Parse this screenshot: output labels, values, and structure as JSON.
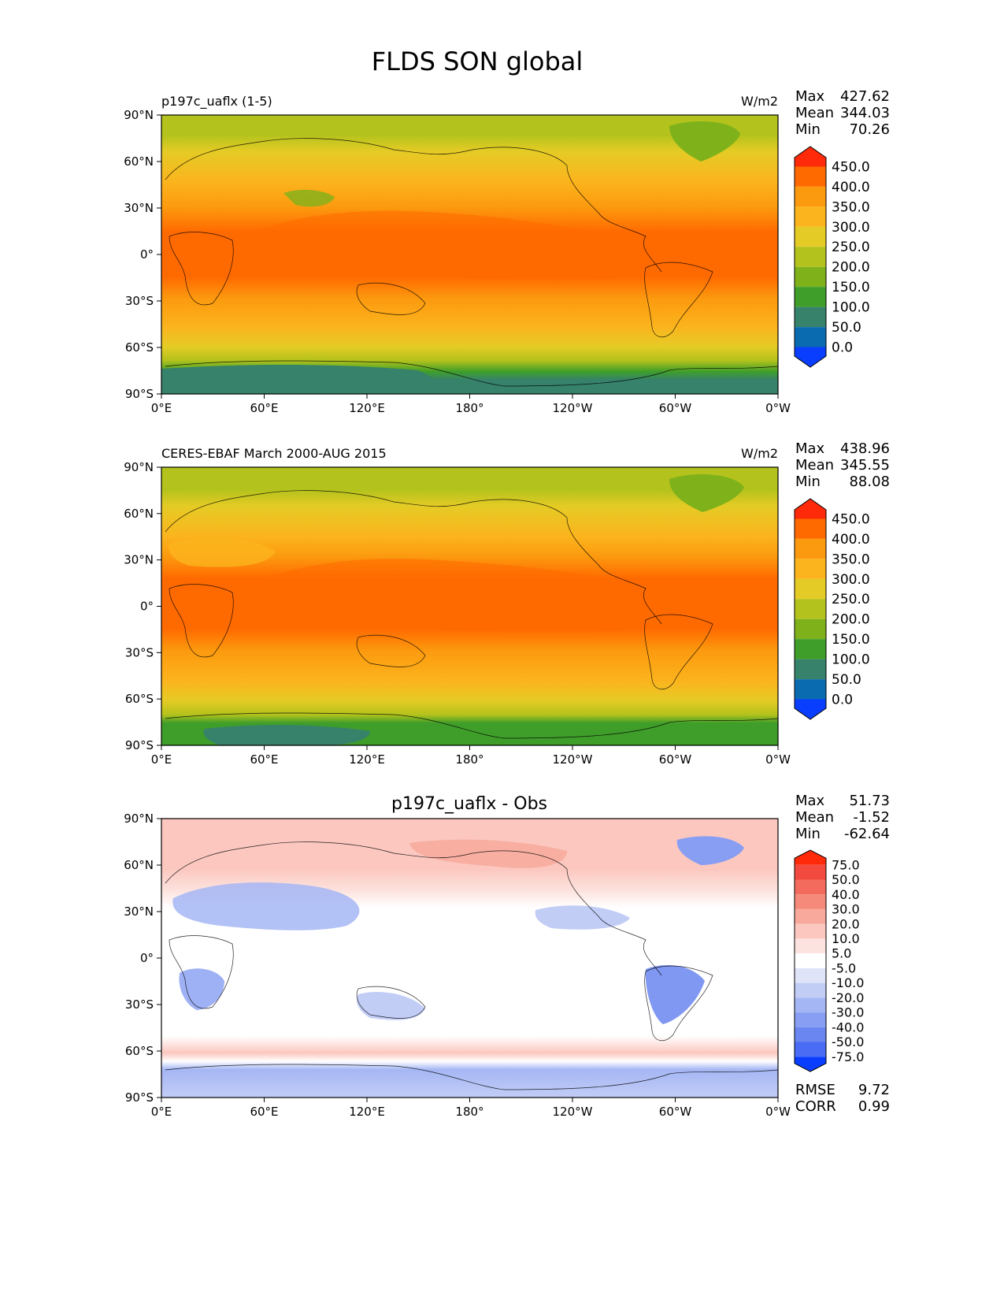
{
  "figure": {
    "title": "FLDS SON global"
  },
  "lon_ticks": [
    "0°E",
    "60°E",
    "120°E",
    "180°",
    "120°W",
    "60°W",
    "0°W"
  ],
  "lat_ticks": [
    "90°N",
    "60°N",
    "30°N",
    "0°",
    "30°S",
    "60°S",
    "90°S"
  ],
  "panels": [
    {
      "id": "model",
      "left_title": "p197c_uaflx (1-5)",
      "center_title": "",
      "units": "W/m2",
      "stats": [
        {
          "label": "Max",
          "value": "427.62"
        },
        {
          "label": "Mean",
          "value": "344.03"
        },
        {
          "label": "Min",
          "value": "70.26"
        }
      ],
      "colorbar": {
        "labels": [
          "450.0",
          "400.0",
          "350.0",
          "300.0",
          "250.0",
          "200.0",
          "150.0",
          "100.0",
          "50.0",
          "0.0"
        ],
        "colors": [
          "#ff2a0a",
          "#ff6a00",
          "#fc9a0f",
          "#fbb41d",
          "#e5cb25",
          "#b3c21c",
          "#7fb21a",
          "#3f9e2a",
          "#36826a",
          "#0b6bb0",
          "#0a3eff"
        ]
      },
      "footer": []
    },
    {
      "id": "obs",
      "left_title": "CERES-EBAF March 2000-AUG 2015",
      "center_title": "",
      "units": "W/m2",
      "stats": [
        {
          "label": "Max",
          "value": "438.96"
        },
        {
          "label": "Mean",
          "value": "345.55"
        },
        {
          "label": "Min",
          "value": "88.08"
        }
      ],
      "colorbar": {
        "labels": [
          "450.0",
          "400.0",
          "350.0",
          "300.0",
          "250.0",
          "200.0",
          "150.0",
          "100.0",
          "50.0",
          "0.0"
        ],
        "colors": [
          "#ff2a0a",
          "#ff6a00",
          "#fc9a0f",
          "#fbb41d",
          "#e5cb25",
          "#b3c21c",
          "#7fb21a",
          "#3f9e2a",
          "#36826a",
          "#0b6bb0",
          "#0a3eff"
        ]
      },
      "footer": []
    },
    {
      "id": "diff",
      "left_title": "",
      "center_title": "p197c_uaflx - Obs",
      "units": "",
      "stats": [
        {
          "label": "Max",
          "value": "51.73"
        },
        {
          "label": "Mean",
          "value": "-1.52"
        },
        {
          "label": "Min",
          "value": "-62.64"
        }
      ],
      "colorbar": {
        "labels": [
          "75.0",
          "50.0",
          "40.0",
          "30.0",
          "20.0",
          "10.0",
          "5.0",
          "-5.0",
          "-10.0",
          "-20.0",
          "-30.0",
          "-40.0",
          "-50.0",
          "-75.0"
        ],
        "colors": [
          "#ff2a0a",
          "#f24a3e",
          "#f26b5c",
          "#f58a7a",
          "#f8a99b",
          "#fbc7bf",
          "#fde3df",
          "#ffffff",
          "#dfe4f8",
          "#c2cdf6",
          "#a5b6f4",
          "#879ef2",
          "#6a86f0",
          "#4a6cf5",
          "#0a3eff"
        ]
      },
      "footer": [
        {
          "label": "RMSE",
          "value": "9.72"
        },
        {
          "label": "CORR",
          "value": "0.99"
        }
      ]
    }
  ]
}
